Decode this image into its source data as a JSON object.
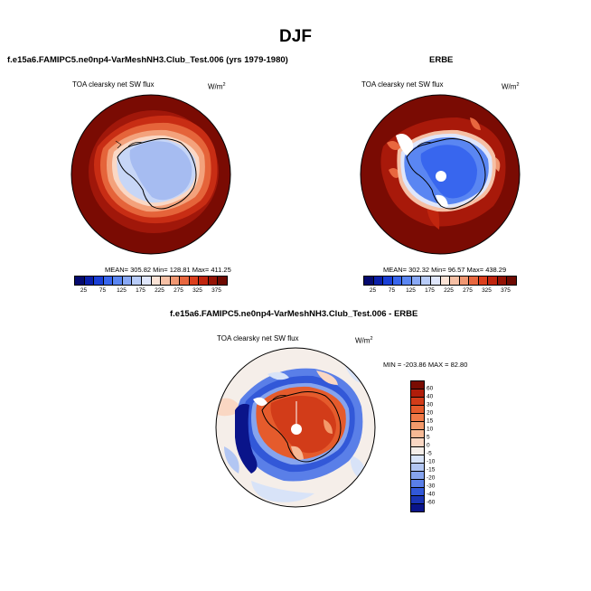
{
  "figure": {
    "title": "DJF",
    "bottom_title": "f.e15a6.FAMIPC5.ne0np4-VarMeshNH3.Club_Test.006 - ERBE"
  },
  "panel_left": {
    "case_title": "f.e15a6.FAMIPC5.ne0np4-VarMeshNH3.Club_Test.006 (yrs 1979-1980)",
    "variable": "TOA clearsky net SW flux",
    "units_base": "W/m",
    "units_exp": "2",
    "stats": "MEAN= 305.82  Min= 128.81  Max= 411.25"
  },
  "panel_right": {
    "case_title": "ERBE",
    "variable": "TOA clearsky net SW flux",
    "units_base": "W/m",
    "units_exp": "2",
    "stats": "MEAN= 302.32  Min= 96.57  Max= 438.29"
  },
  "panel_diff": {
    "variable": "TOA clearsky net SW flux",
    "units_base": "W/m",
    "units_exp": "2",
    "stats": "MIN = -203.86 MAX =  82.80"
  },
  "colorbar_abs": {
    "ticks": [
      "25",
      "75",
      "125",
      "175",
      "225",
      "275",
      "325",
      "375"
    ],
    "colors": [
      "#050a6e",
      "#0a1fa8",
      "#1a3fd6",
      "#3866ee",
      "#5a86f2",
      "#88a8f5",
      "#b7cbf8",
      "#dfe6fb",
      "#fbe3d6",
      "#f6c0a5",
      "#f09772",
      "#e8673f",
      "#dc3f1d",
      "#c0250e",
      "#941305",
      "#6e0a02"
    ]
  },
  "colorbar_diff": {
    "ticks": [
      "60",
      "40",
      "30",
      "20",
      "15",
      "10",
      "5",
      "0",
      "-5",
      "-10",
      "-15",
      "-20",
      "-30",
      "-40",
      "-60"
    ],
    "colors": [
      "#7a0c02",
      "#b01d0a",
      "#d23c19",
      "#e55b2c",
      "#ef7a48",
      "#f39a6b",
      "#f6b995",
      "#fad7c3",
      "#f5eee9",
      "#d8e3f8",
      "#b2c6f3",
      "#86a4ee",
      "#5a7fe8",
      "#3258d8",
      "#1a34b4",
      "#0a148a"
    ]
  }
}
